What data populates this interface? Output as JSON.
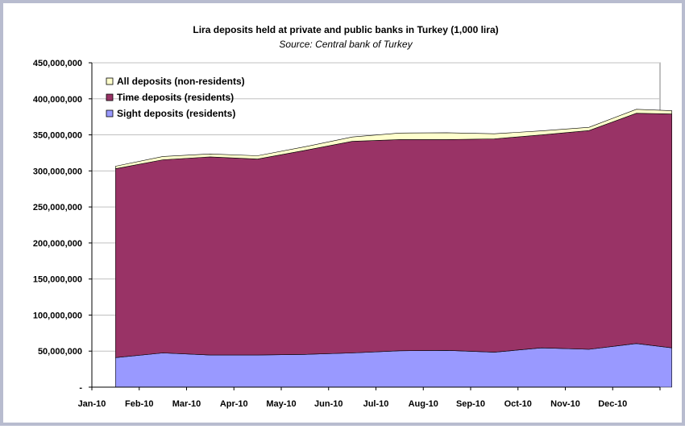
{
  "chart_data": {
    "type": "area",
    "stacked": true,
    "title": "Lira deposits held at private and public banks in Turkey (1,000 lira)",
    "subtitle": "Source: Central bank of Turkey",
    "categories": [
      "Jan-10",
      "Feb-10",
      "Mar-10",
      "Apr-10",
      "May-10",
      "Jun-10",
      "Jul-10",
      "Aug-10",
      "Sep-10",
      "Oct-10",
      "Nov-10",
      "Dec-10"
    ],
    "x": [
      0,
      1,
      2,
      3,
      4,
      5,
      6,
      7,
      8,
      9,
      10,
      11,
      11.75
    ],
    "series": [
      {
        "name": "Sight deposits (residents)",
        "color": "#9999ff",
        "values": [
          41000000,
          47500000,
          44500000,
          44500000,
          45500000,
          47500000,
          50500000,
          51000000,
          48500000,
          54500000,
          52500000,
          60500000,
          54500000
        ]
      },
      {
        "name": "Time deposits (residents)",
        "color": "#993366",
        "values": [
          262000000,
          268000000,
          275000000,
          272000000,
          283000000,
          293500000,
          293000000,
          292500000,
          296000000,
          295500000,
          303500000,
          319500000,
          324500000
        ]
      },
      {
        "name": "All deposits (non-residents)",
        "color": "#ffffcc",
        "values": [
          3500000,
          4500000,
          4000000,
          4500000,
          5000000,
          6000000,
          9000000,
          9500000,
          7000000,
          5500000,
          4500000,
          5500000,
          4500000
        ]
      }
    ],
    "y_tick_labels": [
      "-",
      "50,000,000",
      "100,000,000",
      "150,000,000",
      "200,000,000",
      "250,000,000",
      "300,000,000",
      "350,000,000",
      "400,000,000",
      "450,000,000"
    ],
    "ylim": [
      0,
      450000000
    ],
    "ytick_step": 50000000,
    "grid": "horizontal",
    "legend_position": "top-left"
  }
}
